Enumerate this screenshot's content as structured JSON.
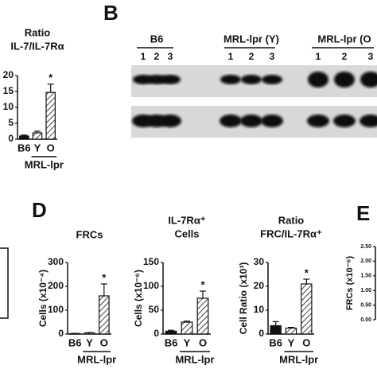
{
  "panel_labels": [
    "B",
    "D",
    "E"
  ],
  "blot": {
    "groups": [
      {
        "label": "B6",
        "lanes": [
          "1",
          "2",
          "3"
        ]
      },
      {
        "label": "MRL-lpr (Y)",
        "lanes": [
          "1",
          "2",
          "3"
        ]
      },
      {
        "label": "MRL-lpr (O",
        "lanes": [
          "1",
          "2",
          "3"
        ]
      }
    ]
  },
  "chart_data": [
    {
      "type": "bar",
      "title": [
        "Ratio",
        "IL-7/IL-7Rα"
      ],
      "categories": [
        "B6",
        "Y",
        "O"
      ],
      "values": [
        1,
        2,
        14.7
      ],
      "errors": [
        0.3,
        0.5,
        2.6
      ],
      "colors": [
        "#111111",
        "#ffffff",
        "#ffffff"
      ],
      "hatch": [
        false,
        true,
        true
      ],
      "ylim": [
        0,
        20
      ],
      "yticks": [
        0,
        5,
        10,
        15,
        20
      ],
      "group": {
        "label": "MRL-lpr",
        "categories": [
          "Y",
          "O"
        ]
      },
      "annotations": [
        {
          "text": "*",
          "category": "O"
        }
      ]
    },
    {
      "type": "bar",
      "title": [
        "FRCs"
      ],
      "ylabel": "Cells (x10⁻⁴)",
      "categories": [
        "B6",
        "Y",
        "O"
      ],
      "values": [
        2,
        5,
        160
      ],
      "errors": [
        1,
        1,
        50
      ],
      "colors": [
        "#111111",
        "#ffffff",
        "#ffffff"
      ],
      "hatch": [
        false,
        true,
        true
      ],
      "ylim": [
        0,
        300
      ],
      "yticks": [
        0,
        100,
        200,
        300
      ],
      "group": {
        "label": "MRL-lpr",
        "categories": [
          "Y",
          "O"
        ]
      },
      "annotations": [
        {
          "text": "*",
          "category": "O"
        }
      ]
    },
    {
      "type": "bar",
      "title": [
        "IL-7Rα⁺",
        "Cells"
      ],
      "ylabel": "Cells (x10⁻⁶)",
      "categories": [
        "B6",
        "Y",
        "O"
      ],
      "values": [
        6,
        25,
        75
      ],
      "errors": [
        2,
        2,
        15
      ],
      "colors": [
        "#111111",
        "#ffffff",
        "#ffffff"
      ],
      "hatch": [
        false,
        true,
        true
      ],
      "ylim": [
        0,
        150
      ],
      "yticks": [
        0,
        50,
        100,
        150
      ],
      "group": {
        "label": "MRL-lpr",
        "categories": [
          "Y",
          "O"
        ]
      },
      "annotations": [
        {
          "text": "*",
          "category": "O"
        }
      ]
    },
    {
      "type": "bar",
      "title": [
        "Ratio",
        "FRC/IL-7Rα⁺"
      ],
      "ylabel": "Cell Ratio (x10³)",
      "categories": [
        "B6",
        "Y",
        "O"
      ],
      "values": [
        3.5,
        2.5,
        21
      ],
      "errors": [
        1.7,
        0.3,
        2
      ],
      "colors": [
        "#111111",
        "#ffffff",
        "#ffffff"
      ],
      "hatch": [
        false,
        true,
        true
      ],
      "ylim": [
        0,
        30
      ],
      "yticks": [
        0,
        10,
        20,
        30
      ],
      "group": {
        "label": "MRL-lpr",
        "categories": [
          "Y",
          "O"
        ]
      },
      "annotations": [
        {
          "text": "*",
          "category": "O"
        }
      ]
    },
    {
      "type": "bar",
      "ylabel": "FRCs (x10⁻⁶)",
      "categories": [],
      "values": [],
      "ylim": [
        0,
        2.5
      ],
      "yticks": [
        {
          "value": 0,
          "label": "0.00"
        },
        {
          "value": 0.5,
          "label": "0.50"
        },
        {
          "value": 1,
          "label": "1.00"
        },
        {
          "value": 1.5,
          "label": "1.50"
        },
        {
          "value": 2,
          "label": "2.00"
        },
        {
          "value": 2.5,
          "label": "2.50"
        }
      ]
    }
  ]
}
